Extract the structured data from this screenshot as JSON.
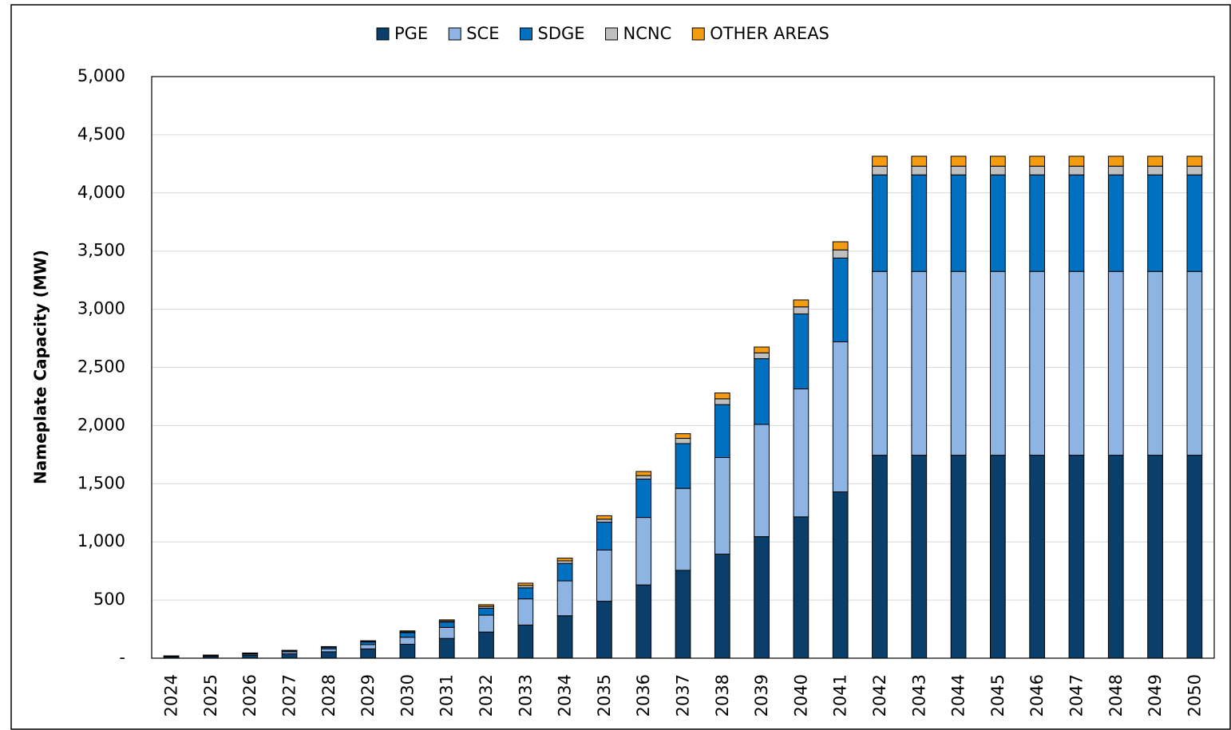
{
  "chart_data": {
    "type": "stacked_bar",
    "y_label": "Nameplate Capacity (MW)",
    "categories": [
      "2024",
      "2025",
      "2026",
      "2027",
      "2028",
      "2029",
      "2030",
      "2031",
      "2032",
      "2033",
      "2034",
      "2035",
      "2036",
      "2037",
      "2038",
      "2039",
      "2040",
      "2041",
      "2042",
      "2043",
      "2044",
      "2045",
      "2046",
      "2047",
      "2048",
      "2049",
      "2050"
    ],
    "series": [
      {
        "name": "PGE",
        "color": "#0b3f6b",
        "values": [
          12,
          16,
          27,
          38,
          55,
          80,
          120,
          170,
          225,
          285,
          365,
          490,
          630,
          755,
          895,
          1045,
          1215,
          1430,
          1745,
          1745,
          1745,
          1745,
          1745,
          1745,
          1745,
          1745,
          1745
        ]
      },
      {
        "name": "SCE",
        "color": "#8db4e2",
        "values": [
          4,
          6,
          10,
          17,
          25,
          37,
          60,
          95,
          145,
          225,
          300,
          440,
          580,
          705,
          830,
          965,
          1100,
          1290,
          1580,
          1580,
          1580,
          1580,
          1580,
          1580,
          1580,
          1580,
          1580
        ]
      },
      {
        "name": "SDGE",
        "color": "#0070c0",
        "values": [
          2,
          3,
          5,
          9,
          14,
          23,
          40,
          45,
          60,
          95,
          150,
          240,
          330,
          385,
          455,
          565,
          645,
          720,
          830,
          830,
          830,
          830,
          830,
          830,
          830,
          830,
          830
        ]
      },
      {
        "name": "NCNC",
        "color": "#bfbfbf",
        "values": [
          1,
          1,
          1,
          2,
          3,
          5,
          7,
          10,
          15,
          20,
          22,
          25,
          30,
          45,
          50,
          50,
          60,
          70,
          75,
          75,
          75,
          75,
          75,
          75,
          75,
          75,
          75
        ]
      },
      {
        "name": "OTHER AREAS",
        "color": "#f39c12",
        "values": [
          1,
          1,
          2,
          2,
          3,
          5,
          8,
          10,
          15,
          20,
          23,
          30,
          35,
          40,
          50,
          50,
          60,
          70,
          85,
          85,
          85,
          85,
          85,
          85,
          85,
          85,
          85
        ]
      }
    ],
    "ylim": [
      0,
      5000
    ],
    "yticks": [
      {
        "value": 0,
        "label": "-"
      },
      500,
      {
        "value": 1000,
        "label": "1,000"
      },
      {
        "value": 1500,
        "label": "1,500"
      },
      {
        "value": 2000,
        "label": "2,000"
      },
      {
        "value": 2500,
        "label": "2,500"
      },
      {
        "value": 3000,
        "label": "3,000"
      },
      {
        "value": 3500,
        "label": "3,500"
      },
      {
        "value": 4000,
        "label": "4,000"
      },
      {
        "value": 4500,
        "label": "4,500"
      },
      {
        "value": 5000,
        "label": "5,000"
      }
    ],
    "grid": true,
    "legend": "top"
  }
}
